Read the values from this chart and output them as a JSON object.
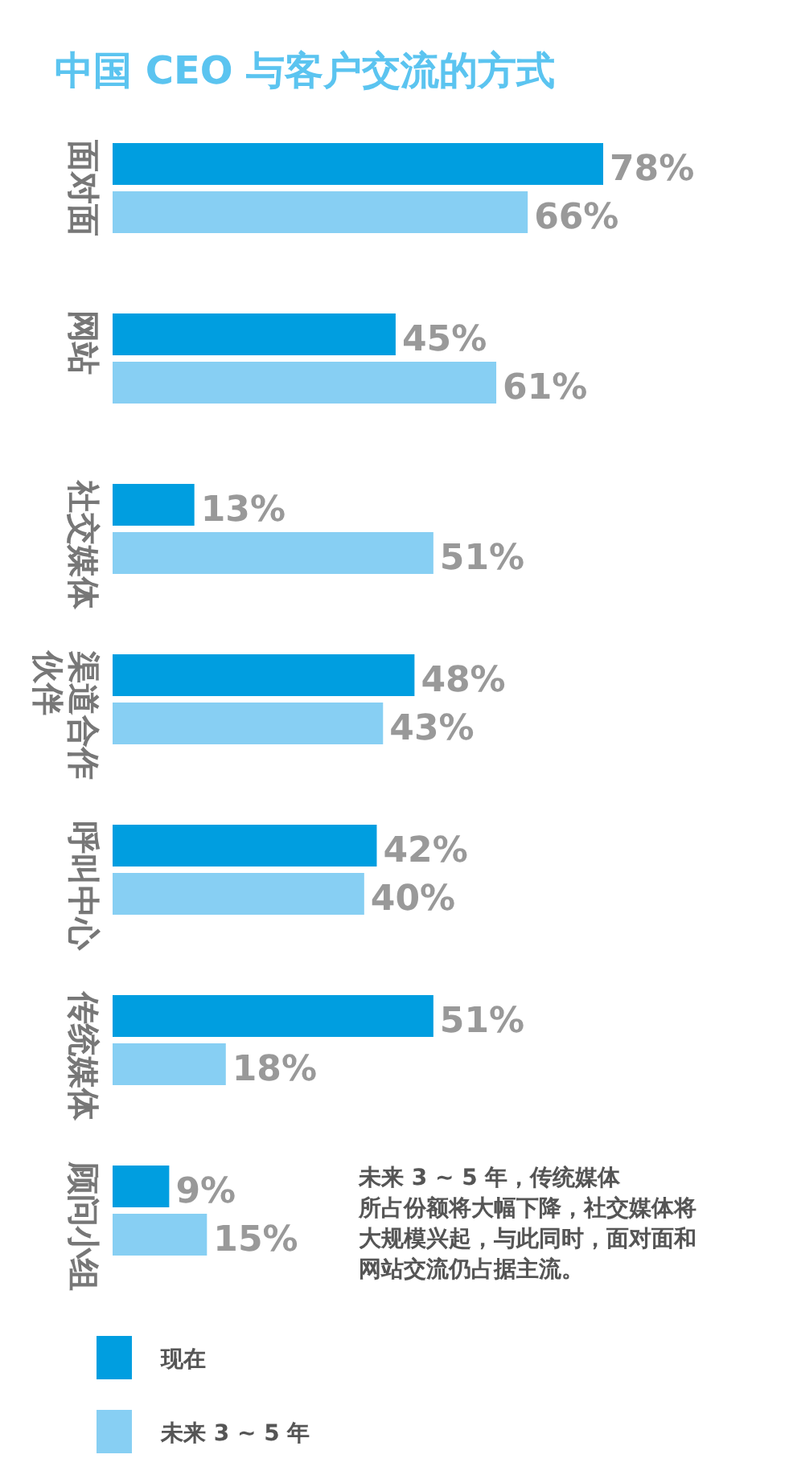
{
  "chart_data": {
    "type": "bar",
    "orientation": "horizontal",
    "title": "中国 CEO 与客户交流的方式",
    "categories": [
      "面对面",
      "网站",
      "社交媒体",
      "渠道合作伙伴",
      "呼叫中心",
      "传统媒体",
      "顾问小组"
    ],
    "series": [
      {
        "name": "现在",
        "color": "#009ee0",
        "values": [
          78,
          45,
          13,
          48,
          42,
          51,
          9
        ],
        "value_labels": [
          "78%",
          "45%",
          "13%",
          "48%",
          "42%",
          "51%",
          "9%"
        ]
      },
      {
        "name": "未来 3 ~ 5 年",
        "color": "#87cff3",
        "values": [
          66,
          61,
          51,
          43,
          40,
          18,
          15
        ],
        "value_labels": [
          "66%",
          "61%",
          "51%",
          "43%",
          "40%",
          "18%",
          "15%"
        ]
      }
    ],
    "annotations": [
      "未来 3 ~ 5 年，传统媒体所占份额将大幅下降，社交媒体将大规模兴起，与此同时，面对面和网站交流仍占据主流。"
    ],
    "legend": "bottom"
  }
}
